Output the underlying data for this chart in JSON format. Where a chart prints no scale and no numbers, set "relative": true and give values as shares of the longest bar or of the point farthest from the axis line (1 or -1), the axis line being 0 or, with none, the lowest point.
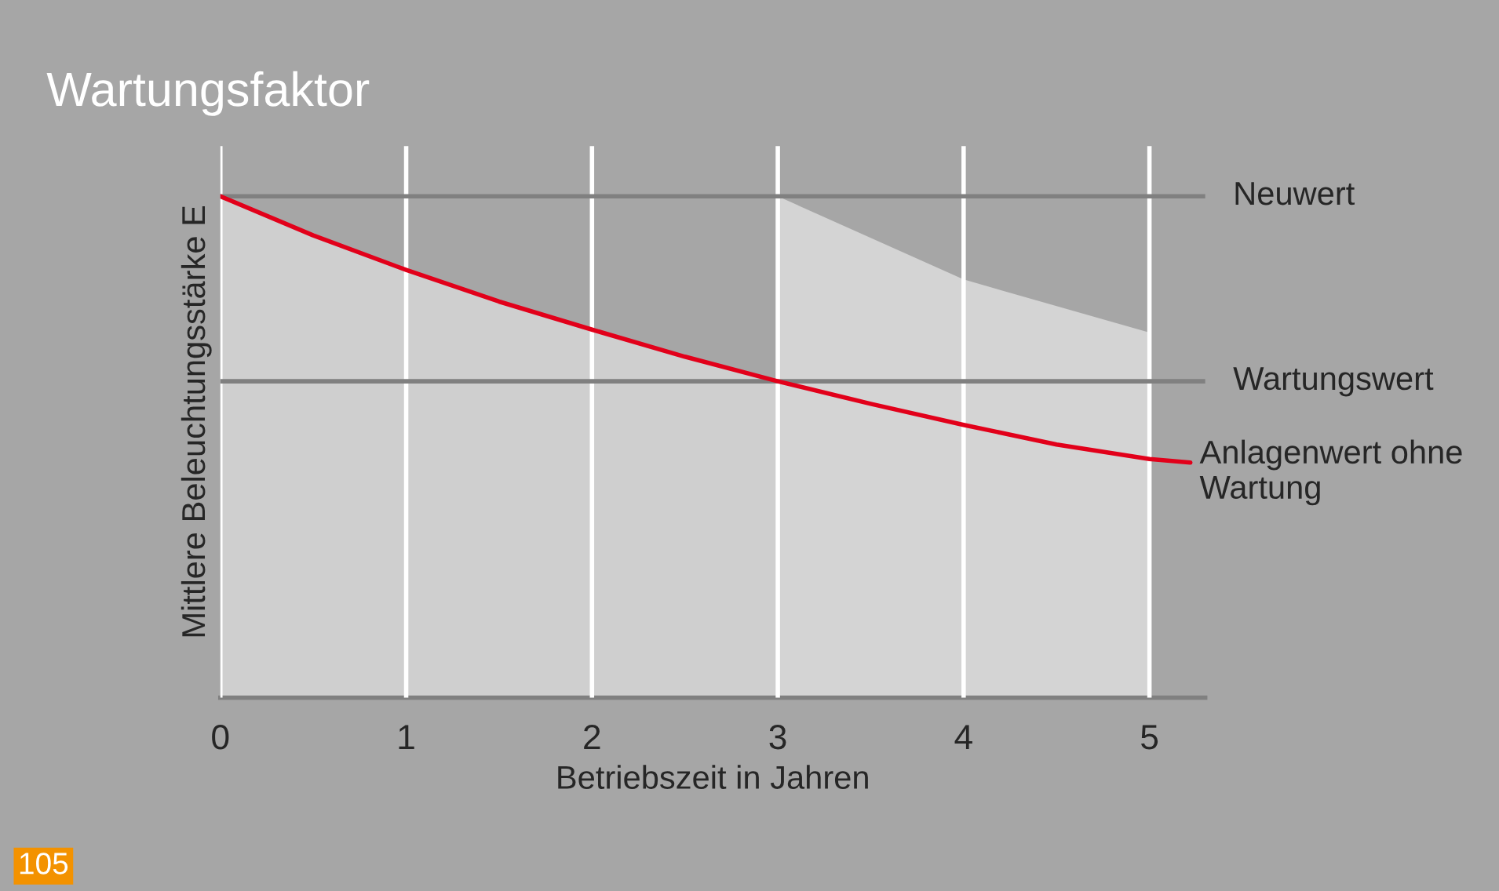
{
  "chart_data": {
    "type": "line",
    "title": "Wartungsfaktor",
    "xlabel": "Betriebszeit in Jahren",
    "ylabel": "Mittlere Beleuchtungsstärke E",
    "relative": true,
    "xlim": [
      0,
      5.3
    ],
    "xticks": [
      0,
      1,
      2,
      3,
      4,
      5
    ],
    "grid": "x",
    "legend": false,
    "series": [
      {
        "type": "area",
        "color": "#cfcfcf",
        "x": [
          0,
          1,
          2,
          3
        ],
        "values": [
          1,
          0.853,
          0.734,
          0.631
        ]
      },
      {
        "type": "area",
        "color": "#d4d4d4",
        "x": [
          3,
          4,
          5
        ],
        "values": [
          1,
          0.834,
          0.728
        ]
      },
      {
        "name": "Anlagenwert ohne Wartung",
        "color": "#e2001a",
        "x": [
          0,
          0.5,
          1,
          1.5,
          2,
          2.5,
          3,
          3.5,
          4,
          4.5,
          5,
          5.22
        ],
        "values": [
          1,
          0.922,
          0.853,
          0.79,
          0.734,
          0.68,
          0.631,
          0.586,
          0.544,
          0.505,
          0.476,
          0.469
        ]
      }
    ],
    "ref_lines": [
      {
        "axis": "y",
        "value": 1,
        "label": "Neuwert",
        "color": "#808080"
      },
      {
        "axis": "y",
        "value": 0.631,
        "label": "Wartungswert",
        "color": "#808080"
      }
    ],
    "annotations": [
      "105"
    ]
  }
}
